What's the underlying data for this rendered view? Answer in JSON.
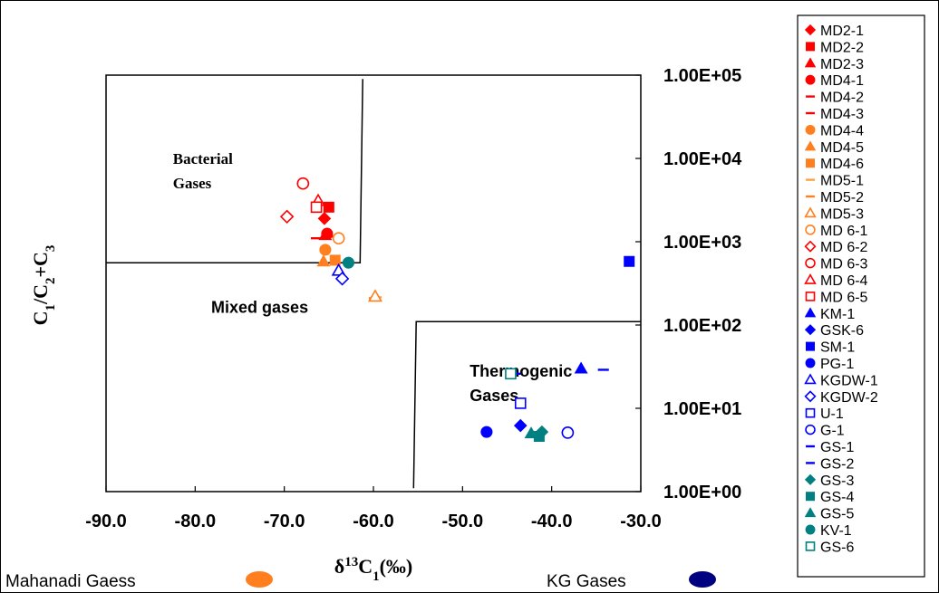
{
  "chart_data": {
    "type": "scatter",
    "xlabel": "δ13C1(‰)",
    "ylabel": "C1/C2+C3",
    "xlim": [
      -90,
      -30
    ],
    "ylim": [
      1,
      100000
    ],
    "yscale": "log",
    "x_ticks": [
      "-90.0",
      "-80.0",
      "-70.0",
      "-60.0",
      "-50.0",
      "-40.0",
      "-30.0"
    ],
    "y_ticks": [
      "1.00E+00",
      "1.00E+01",
      "1.00E+02",
      "1.00E+03",
      "1.00E+04",
      "1.00E+05"
    ],
    "regions": [
      {
        "label": "Bacterial Gases",
        "lines": [
          "Bacterial",
          "Gases"
        ]
      },
      {
        "label": "Mixed gases",
        "lines": [
          "Mixed gases"
        ]
      },
      {
        "label": "Thermogenic Gases",
        "lines": [
          "Thermogenic",
          "Gases"
        ]
      }
    ],
    "boundaries": [
      {
        "points": [
          [
            -90,
            560
          ],
          [
            -61.5,
            560
          ],
          [
            -61.2,
            90000
          ]
        ]
      },
      {
        "points": [
          [
            -55.5,
            1.1
          ],
          [
            -55.2,
            110
          ],
          [
            -30,
            110
          ]
        ]
      }
    ],
    "series": [
      {
        "name": "MD2-1",
        "marker": "diamond",
        "filled": true,
        "color": "#ff0000",
        "points": [
          [
            -65.5,
            1900
          ]
        ]
      },
      {
        "name": "MD2-2",
        "marker": "square",
        "filled": true,
        "color": "#ff0000",
        "points": [
          [
            -65,
            2600
          ]
        ]
      },
      {
        "name": "MD2-3",
        "marker": "triangle",
        "filled": true,
        "color": "#ff0000",
        "points": [
          [
            -65.4,
            1200
          ]
        ]
      },
      {
        "name": "MD4-1",
        "marker": "circle",
        "filled": true,
        "color": "#ff0000",
        "points": [
          [
            -65.2,
            1250
          ]
        ]
      },
      {
        "name": "MD4-2",
        "marker": "dash",
        "filled": true,
        "color": "#ff0000",
        "points": [
          [
            -65.1,
            1150
          ]
        ]
      },
      {
        "name": "MD4-3",
        "marker": "dash",
        "filled": true,
        "color": "#ff0000",
        "points": [
          [
            -66.4,
            1100
          ]
        ]
      },
      {
        "name": "MD4-4",
        "marker": "circle",
        "filled": true,
        "color": "#ff7f1f",
        "points": [
          [
            -65.4,
            800
          ]
        ]
      },
      {
        "name": "MD4-5",
        "marker": "triangle",
        "filled": true,
        "color": "#ff7f1f",
        "points": [
          [
            -65.6,
            580
          ]
        ]
      },
      {
        "name": "MD4-6",
        "marker": "square",
        "filled": true,
        "color": "#ff7f1f",
        "points": [
          [
            -64.3,
            600
          ]
        ]
      },
      {
        "name": "MD5-1",
        "marker": "dash",
        "filled": true,
        "color": "#ffa040",
        "points": [
          [
            -59.7,
            215
          ]
        ]
      },
      {
        "name": "MD5-2",
        "marker": "dash",
        "filled": true,
        "color": "#ff7f1f",
        "points": [
          [
            -59.9,
            210
          ]
        ]
      },
      {
        "name": "MD5-3",
        "marker": "triangle",
        "filled": false,
        "color": "#ff7f1f",
        "points": [
          [
            -59.8,
            220
          ]
        ]
      },
      {
        "name": "MD 6-1",
        "marker": "circle",
        "filled": false,
        "color": "#ff7f1f",
        "points": [
          [
            -63.9,
            1100
          ]
        ]
      },
      {
        "name": "MD 6-2",
        "marker": "diamond",
        "filled": false,
        "color": "#ff0000",
        "points": [
          [
            -69.7,
            2000
          ]
        ]
      },
      {
        "name": "MD 6-3",
        "marker": "circle",
        "filled": false,
        "color": "#ff0000",
        "points": [
          [
            -67.9,
            5000
          ]
        ]
      },
      {
        "name": "MD 6-4",
        "marker": "triangle",
        "filled": false,
        "color": "#ff0000",
        "points": [
          [
            -66.2,
            3100
          ]
        ]
      },
      {
        "name": "MD 6-5",
        "marker": "square",
        "filled": false,
        "color": "#ff0000",
        "points": [
          [
            -66.4,
            2600
          ]
        ]
      },
      {
        "name": "KM-1",
        "marker": "triangle",
        "filled": true,
        "color": "#0000ff",
        "points": [
          [
            -36.7,
            30
          ]
        ]
      },
      {
        "name": "GSK-6",
        "marker": "diamond",
        "filled": true,
        "color": "#0000ff",
        "points": [
          [
            -43.5,
            6.2
          ]
        ]
      },
      {
        "name": "SM-1",
        "marker": "square",
        "filled": true,
        "color": "#0000ff",
        "points": [
          [
            -31.3,
            580
          ]
        ]
      },
      {
        "name": "PG-1",
        "marker": "circle",
        "filled": true,
        "color": "#0000ff",
        "points": [
          [
            -47.3,
            5.2
          ]
        ]
      },
      {
        "name": "KGDW-1",
        "marker": "triangle",
        "filled": false,
        "color": "#0000ff",
        "points": [
          [
            -63.9,
            450
          ]
        ]
      },
      {
        "name": "KGDW-2",
        "marker": "diamond",
        "filled": false,
        "color": "#0000ff",
        "points": [
          [
            -63.5,
            360
          ]
        ]
      },
      {
        "name": "U-1",
        "marker": "square",
        "filled": false,
        "color": "#0000ff",
        "points": [
          [
            -43.5,
            11.5
          ]
        ]
      },
      {
        "name": "G-1",
        "marker": "circle",
        "filled": false,
        "color": "#0000ff",
        "points": [
          [
            -38.2,
            5.1
          ]
        ]
      },
      {
        "name": "GS-1",
        "marker": "dash",
        "filled": true,
        "color": "#0000ff",
        "points": [
          [
            -34.2,
            29
          ]
        ]
      },
      {
        "name": "GS-2",
        "marker": "dash",
        "filled": true,
        "color": "#0000ff",
        "points": [
          [
            -44.1,
            26
          ]
        ]
      },
      {
        "name": "GS-3",
        "marker": "diamond",
        "filled": true,
        "color": "#008080",
        "points": [
          [
            -41.1,
            5.2
          ]
        ]
      },
      {
        "name": "GS-4",
        "marker": "square",
        "filled": true,
        "color": "#008080",
        "points": [
          [
            -41.4,
            4.6
          ]
        ]
      },
      {
        "name": "GS-5",
        "marker": "triangle",
        "filled": true,
        "color": "#008080",
        "points": [
          [
            -42.3,
            5.0
          ]
        ]
      },
      {
        "name": "KV-1",
        "marker": "circle",
        "filled": true,
        "color": "#008080",
        "points": [
          [
            -62.8,
            560
          ]
        ]
      },
      {
        "name": "GS-6",
        "marker": "square",
        "filled": false,
        "color": "#008080",
        "points": [
          [
            -44.6,
            26
          ]
        ]
      }
    ],
    "group_notes": [
      {
        "label": "Mahanadi Gaess",
        "color": "#ff7f1f"
      },
      {
        "label": "KG Gases",
        "color": "#000080"
      }
    ]
  }
}
